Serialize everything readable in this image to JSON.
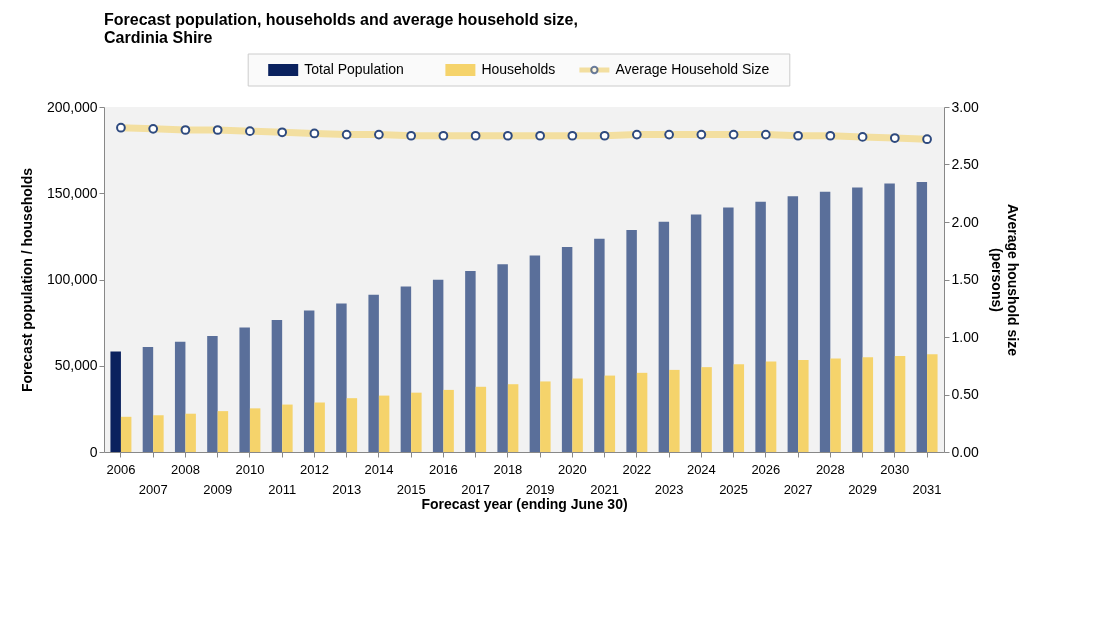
{
  "chart_data": {
    "type": "bar",
    "title": "Forecast population, households  and average household size,\nCardinia Shire",
    "xlabel": "Forecast year (ending June 30)",
    "ylabel": "Forecast population / households",
    "y2label": "Average houshold size\n(persons)",
    "categories": [
      "2006",
      "2007",
      "2008",
      "2009",
      "2010",
      "2011",
      "2012",
      "2013",
      "2014",
      "2015",
      "2016",
      "2017",
      "2018",
      "2019",
      "2020",
      "2021",
      "2022",
      "2023",
      "2024",
      "2025",
      "2026",
      "2027",
      "2028",
      "2029",
      "2030",
      "2031"
    ],
    "series": [
      {
        "name": "Total Population",
        "color": "#0a215e",
        "colors": [
          "#0a215e",
          "#5a6f9a",
          "#5a6f9a",
          "#5a6f9a",
          "#5a6f9a",
          "#5a6f9a",
          "#5a6f9a",
          "#5a6f9a",
          "#5a6f9a",
          "#5a6f9a",
          "#5a6f9a",
          "#5a6f9a",
          "#5a6f9a",
          "#5a6f9a",
          "#5a6f9a",
          "#5a6f9a",
          "#5a6f9a",
          "#5a6f9a",
          "#5a6f9a",
          "#5a6f9a",
          "#5a6f9a",
          "#5a6f9a",
          "#5a6f9a",
          "#5a6f9a",
          "#5a6f9a",
          "#5a6f9a"
        ],
        "values": [
          58200,
          60800,
          63900,
          67200,
          72200,
          76500,
          82100,
          86100,
          91100,
          95900,
          99900,
          104900,
          108900,
          113900,
          118800,
          123600,
          128700,
          133500,
          137700,
          141800,
          145100,
          148200,
          150800,
          153300,
          155700,
          156500
        ]
      },
      {
        "name": "Households",
        "color": "#f5d36b",
        "values": [
          20400,
          21300,
          22200,
          23700,
          25300,
          27500,
          28700,
          31200,
          32700,
          34400,
          36000,
          37800,
          39300,
          40900,
          42600,
          44300,
          45900,
          47600,
          49200,
          50900,
          52500,
          53400,
          54200,
          54900,
          55700,
          56600
        ]
      },
      {
        "name": "Average Household Size",
        "type": "line",
        "axis": "y2",
        "color": "#f3dfa0",
        "marker": "circle",
        "values": [
          2.82,
          2.81,
          2.8,
          2.8,
          2.79,
          2.78,
          2.77,
          2.76,
          2.76,
          2.75,
          2.75,
          2.75,
          2.75,
          2.75,
          2.75,
          2.75,
          2.76,
          2.76,
          2.76,
          2.76,
          2.76,
          2.75,
          2.75,
          2.74,
          2.73,
          2.72
        ]
      }
    ],
    "ylim": [
      0,
      200000
    ],
    "yticks": [
      {
        "value": 0,
        "label": "0"
      },
      {
        "value": 50000,
        "label": "50,000"
      },
      {
        "value": 100000,
        "label": "100,000"
      },
      {
        "value": 150000,
        "label": "150,000"
      },
      {
        "value": 200000,
        "label": "200,000"
      }
    ],
    "y2lim": [
      0,
      3
    ],
    "y2ticks": [
      {
        "value": 0,
        "label": "0.00"
      },
      {
        "value": 0.5,
        "label": "0.50"
      },
      {
        "value": 1,
        "label": "1.00"
      },
      {
        "value": 1.5,
        "label": "1.50"
      },
      {
        "value": 2,
        "label": "2.00"
      },
      {
        "value": 2.5,
        "label": "2.50"
      },
      {
        "value": 3,
        "label": "3.00"
      }
    ],
    "grid": false,
    "legend": "top"
  }
}
